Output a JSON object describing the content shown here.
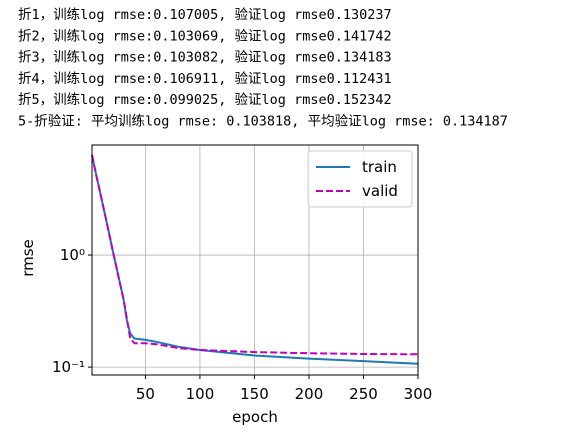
{
  "output_lines": [
    "折1，训练log rmse:0.107005, 验证log rmse0.130237",
    "折2，训练log rmse:0.103069, 验证log rmse0.141742",
    "折3，训练log rmse:0.103082, 验证log rmse0.134183",
    "折4，训练log rmse:0.106911, 验证log rmse0.112431",
    "折5，训练log rmse:0.099025, 验证log rmse0.152342",
    "5-折验证: 平均训练log rmse: 0.103818, 平均验证log rmse: 0.134187"
  ],
  "chart_data": {
    "type": "line",
    "xlabel": "epoch",
    "ylabel": "rmse",
    "log_y": true,
    "grid": true,
    "legend": "upper right",
    "x": [
      1,
      5,
      10,
      15,
      20,
      25,
      30,
      33,
      36,
      40,
      50,
      60,
      80,
      100,
      150,
      200,
      250,
      300
    ],
    "series": [
      {
        "name": "train",
        "color": "#1f77b4",
        "style": "solid",
        "values": [
          7.8,
          5.1,
          3.1,
          1.85,
          1.1,
          0.66,
          0.4,
          0.26,
          0.2,
          0.18,
          0.175,
          0.168,
          0.152,
          0.142,
          0.127,
          0.119,
          0.113,
          0.107
        ]
      },
      {
        "name": "valid",
        "color": "#bf00bf",
        "style": "dashed",
        "values": [
          7.8,
          5.1,
          3.1,
          1.85,
          1.1,
          0.66,
          0.4,
          0.27,
          0.18,
          0.163,
          0.163,
          0.16,
          0.148,
          0.142,
          0.136,
          0.133,
          0.131,
          0.13
        ]
      }
    ],
    "xlim": [
      1,
      300
    ],
    "xticks": [
      50,
      100,
      150,
      200,
      250,
      300
    ],
    "ylim": [
      0.085,
      9.6
    ],
    "yticks": [
      {
        "value": 0.1,
        "label": "10⁻¹"
      },
      {
        "value": 1,
        "label": "10⁰"
      }
    ]
  }
}
